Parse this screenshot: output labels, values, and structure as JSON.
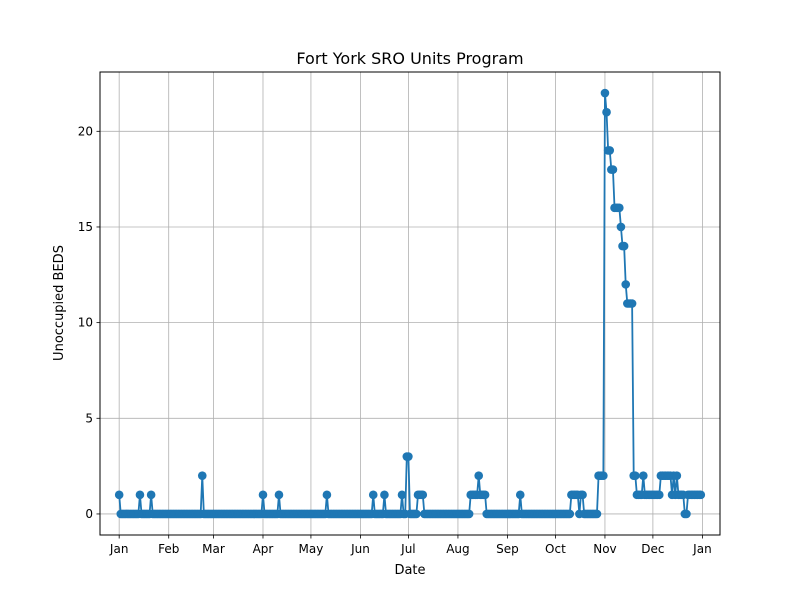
{
  "chart_data": {
    "type": "line",
    "title": "Fort York SRO Units Program",
    "xlabel": "Date",
    "ylabel": "Unoccupied BEDS",
    "grid": true,
    "series_color": "#1f77b4",
    "grid_color": "#b0b0b0",
    "x_range": [
      "2021-12-20",
      "2023-01-12"
    ],
    "ylim": [
      -1.1,
      23.1
    ],
    "y_ticks": [
      0,
      5,
      10,
      15,
      20
    ],
    "x_ticks": [
      {
        "date": "2022-01-01",
        "label": "Jan"
      },
      {
        "date": "2022-02-01",
        "label": "Feb"
      },
      {
        "date": "2022-03-01",
        "label": "Mar"
      },
      {
        "date": "2022-04-01",
        "label": "Apr"
      },
      {
        "date": "2022-05-01",
        "label": "May"
      },
      {
        "date": "2022-06-01",
        "label": "Jun"
      },
      {
        "date": "2022-07-01",
        "label": "Jul"
      },
      {
        "date": "2022-08-01",
        "label": "Aug"
      },
      {
        "date": "2022-09-01",
        "label": "Sep"
      },
      {
        "date": "2022-10-01",
        "label": "Oct"
      },
      {
        "date": "2022-11-01",
        "label": "Nov"
      },
      {
        "date": "2022-12-01",
        "label": "Dec"
      },
      {
        "date": "2023-01-01",
        "label": "Jan"
      }
    ],
    "series": [
      {
        "x": [
          "2022-01-01",
          "2022-01-02",
          "2022-01-03",
          "2022-01-04",
          "2022-01-05",
          "2022-01-06",
          "2022-01-07",
          "2022-01-08",
          "2022-01-09",
          "2022-01-10",
          "2022-01-11",
          "2022-01-12",
          "2022-01-13",
          "2022-01-14",
          "2022-01-15",
          "2022-01-16",
          "2022-01-17",
          "2022-01-18",
          "2022-01-19",
          "2022-01-20",
          "2022-01-21",
          "2022-01-22",
          "2022-01-23",
          "2022-01-24",
          "2022-01-25",
          "2022-01-26",
          "2022-01-27",
          "2022-01-28",
          "2022-01-29",
          "2022-01-30",
          "2022-01-31",
          "2022-02-01",
          "2022-02-02",
          "2022-02-03",
          "2022-02-04",
          "2022-02-05",
          "2022-02-06",
          "2022-02-07",
          "2022-02-08",
          "2022-02-09",
          "2022-02-10",
          "2022-02-11",
          "2022-02-12",
          "2022-02-13",
          "2022-02-14",
          "2022-02-15",
          "2022-02-16",
          "2022-02-17",
          "2022-02-18",
          "2022-02-19",
          "2022-02-20",
          "2022-02-21",
          "2022-02-22",
          "2022-02-23",
          "2022-02-24",
          "2022-02-25",
          "2022-02-26",
          "2022-02-27",
          "2022-02-28",
          "2022-03-01",
          "2022-03-02",
          "2022-03-03",
          "2022-03-04",
          "2022-03-05",
          "2022-03-06",
          "2022-03-07",
          "2022-03-08",
          "2022-03-09",
          "2022-03-10",
          "2022-03-11",
          "2022-03-12",
          "2022-03-13",
          "2022-03-14",
          "2022-03-15",
          "2022-03-16",
          "2022-03-17",
          "2022-03-18",
          "2022-03-19",
          "2022-03-20",
          "2022-03-21",
          "2022-03-22",
          "2022-03-23",
          "2022-03-24",
          "2022-03-25",
          "2022-03-26",
          "2022-03-27",
          "2022-03-28",
          "2022-03-29",
          "2022-03-30",
          "2022-03-31",
          "2022-04-01",
          "2022-04-02",
          "2022-04-03",
          "2022-04-04",
          "2022-04-05",
          "2022-04-06",
          "2022-04-07",
          "2022-04-08",
          "2022-04-09",
          "2022-04-10",
          "2022-04-11",
          "2022-04-12",
          "2022-04-13",
          "2022-04-14",
          "2022-04-15",
          "2022-04-16",
          "2022-04-17",
          "2022-04-18",
          "2022-04-19",
          "2022-04-20",
          "2022-04-21",
          "2022-04-22",
          "2022-04-23",
          "2022-04-24",
          "2022-04-25",
          "2022-04-26",
          "2022-04-27",
          "2022-04-28",
          "2022-04-29",
          "2022-04-30",
          "2022-05-01",
          "2022-05-02",
          "2022-05-03",
          "2022-05-04",
          "2022-05-05",
          "2022-05-06",
          "2022-05-07",
          "2022-05-08",
          "2022-05-09",
          "2022-05-10",
          "2022-05-11",
          "2022-05-12",
          "2022-05-13",
          "2022-05-14",
          "2022-05-15",
          "2022-05-16",
          "2022-05-17",
          "2022-05-18",
          "2022-05-19",
          "2022-05-20",
          "2022-05-21",
          "2022-05-22",
          "2022-05-23",
          "2022-05-24",
          "2022-05-25",
          "2022-05-26",
          "2022-05-27",
          "2022-05-28",
          "2022-05-29",
          "2022-05-30",
          "2022-05-31",
          "2022-06-01",
          "2022-06-02",
          "2022-06-03",
          "2022-06-04",
          "2022-06-05",
          "2022-06-06",
          "2022-06-07",
          "2022-06-08",
          "2022-06-09",
          "2022-06-10",
          "2022-06-11",
          "2022-06-12",
          "2022-06-13",
          "2022-06-14",
          "2022-06-15",
          "2022-06-16",
          "2022-06-17",
          "2022-06-18",
          "2022-06-19",
          "2022-06-20",
          "2022-06-21",
          "2022-06-22",
          "2022-06-23",
          "2022-06-24",
          "2022-06-25",
          "2022-06-26",
          "2022-06-27",
          "2022-06-28",
          "2022-06-29",
          "2022-06-30",
          "2022-07-01",
          "2022-07-02",
          "2022-07-03",
          "2022-07-04",
          "2022-07-05",
          "2022-07-06",
          "2022-07-07",
          "2022-07-08",
          "2022-07-09",
          "2022-07-10",
          "2022-07-11",
          "2022-07-12",
          "2022-07-13",
          "2022-07-14",
          "2022-07-15",
          "2022-07-16",
          "2022-07-17",
          "2022-07-18",
          "2022-07-19",
          "2022-07-20",
          "2022-07-21",
          "2022-07-22",
          "2022-07-23",
          "2022-07-24",
          "2022-07-25",
          "2022-07-26",
          "2022-07-27",
          "2022-07-28",
          "2022-07-29",
          "2022-07-30",
          "2022-07-31",
          "2022-08-01",
          "2022-08-02",
          "2022-08-03",
          "2022-08-04",
          "2022-08-05",
          "2022-08-06",
          "2022-08-07",
          "2022-08-08",
          "2022-08-09",
          "2022-08-10",
          "2022-08-11",
          "2022-08-12",
          "2022-08-13",
          "2022-08-14",
          "2022-08-15",
          "2022-08-16",
          "2022-08-17",
          "2022-08-18",
          "2022-08-19",
          "2022-08-20",
          "2022-08-21",
          "2022-08-22",
          "2022-08-23",
          "2022-08-24",
          "2022-08-25",
          "2022-08-26",
          "2022-08-27",
          "2022-08-28",
          "2022-08-29",
          "2022-08-30",
          "2022-08-31",
          "2022-09-01",
          "2022-09-02",
          "2022-09-03",
          "2022-09-04",
          "2022-09-05",
          "2022-09-06",
          "2022-09-07",
          "2022-09-08",
          "2022-09-09",
          "2022-09-10",
          "2022-09-11",
          "2022-09-12",
          "2022-09-13",
          "2022-09-14",
          "2022-09-15",
          "2022-09-16",
          "2022-09-17",
          "2022-09-18",
          "2022-09-19",
          "2022-09-20",
          "2022-09-21",
          "2022-09-22",
          "2022-09-23",
          "2022-09-24",
          "2022-09-25",
          "2022-09-26",
          "2022-09-27",
          "2022-09-28",
          "2022-09-29",
          "2022-09-30",
          "2022-10-01",
          "2022-10-02",
          "2022-10-03",
          "2022-10-04",
          "2022-10-05",
          "2022-10-06",
          "2022-10-07",
          "2022-10-08",
          "2022-10-09",
          "2022-10-10",
          "2022-10-11",
          "2022-10-12",
          "2022-10-13",
          "2022-10-14",
          "2022-10-15",
          "2022-10-16",
          "2022-10-17",
          "2022-10-18",
          "2022-10-19",
          "2022-10-20",
          "2022-10-21",
          "2022-10-22",
          "2022-10-23",
          "2022-10-24",
          "2022-10-25",
          "2022-10-26",
          "2022-10-27",
          "2022-10-28",
          "2022-10-29",
          "2022-10-30",
          "2022-10-31",
          "2022-11-01",
          "2022-11-02",
          "2022-11-03",
          "2022-11-04",
          "2022-11-05",
          "2022-11-06",
          "2022-11-07",
          "2022-11-08",
          "2022-11-09",
          "2022-11-10",
          "2022-11-11",
          "2022-11-12",
          "2022-11-13",
          "2022-11-14",
          "2022-11-15",
          "2022-11-16",
          "2022-11-17",
          "2022-11-18",
          "2022-11-19",
          "2022-11-20",
          "2022-11-21",
          "2022-11-22",
          "2022-11-23",
          "2022-11-24",
          "2022-11-25",
          "2022-11-26",
          "2022-11-27",
          "2022-11-28",
          "2022-11-29",
          "2022-11-30",
          "2022-12-01",
          "2022-12-02",
          "2022-12-03",
          "2022-12-04",
          "2022-12-05",
          "2022-12-06",
          "2022-12-07",
          "2022-12-08",
          "2022-12-09",
          "2022-12-10",
          "2022-12-11",
          "2022-12-12",
          "2022-12-13",
          "2022-12-14",
          "2022-12-15",
          "2022-12-16",
          "2022-12-17",
          "2022-12-18",
          "2022-12-19",
          "2022-12-20",
          "2022-12-21",
          "2022-12-22",
          "2022-12-23",
          "2022-12-24",
          "2022-12-25",
          "2022-12-26",
          "2022-12-27",
          "2022-12-28",
          "2022-12-29",
          "2022-12-30",
          "2022-12-31"
        ],
        "y": [
          1,
          0,
          0,
          0,
          0,
          0,
          0,
          0,
          0,
          0,
          0,
          0,
          0,
          0,
          0,
          0,
          0,
          0,
          0,
          0,
          0,
          0,
          0,
          0,
          0,
          0,
          0,
          0,
          0,
          0,
          0,
          0,
          0,
          0,
          0,
          0,
          0,
          0,
          0,
          0,
          0,
          0,
          0,
          0,
          0,
          0,
          0,
          0,
          0,
          0,
          0,
          0,
          0,
          0,
          0,
          0,
          0,
          0,
          0,
          0,
          0,
          0,
          0,
          0,
          0,
          0,
          0,
          0,
          0,
          0,
          0,
          0,
          0,
          0,
          0,
          0,
          0,
          0,
          0,
          0,
          0,
          0,
          0,
          0,
          0,
          0,
          0,
          0,
          0,
          0,
          0,
          0,
          0,
          0,
          0,
          0,
          0,
          0,
          0,
          0,
          0,
          0,
          0,
          0,
          0,
          0,
          0,
          0,
          0,
          0,
          0,
          0,
          0,
          0,
          0,
          0,
          0,
          0,
          0,
          0,
          0,
          0,
          0,
          0,
          0,
          0,
          0,
          0,
          0,
          0,
          0,
          0,
          0,
          0,
          0,
          0,
          0,
          0,
          0,
          0,
          0,
          0,
          0,
          0,
          0,
          0,
          0,
          0,
          0,
          0,
          0,
          0,
          0,
          0,
          0,
          0,
          0,
          0,
          0,
          0,
          0,
          0,
          0,
          0,
          0,
          0,
          0,
          0,
          0,
          0,
          0,
          0,
          0,
          0,
          0,
          0,
          0,
          0,
          0,
          0,
          0,
          0,
          0,
          0,
          0,
          0,
          0,
          0,
          0,
          0,
          0,
          0,
          0,
          0,
          0,
          0,
          0,
          0,
          0,
          0,
          0,
          0,
          0,
          0,
          0,
          0,
          0,
          0,
          0,
          0,
          0,
          0,
          0,
          0,
          0,
          0,
          0,
          0,
          0,
          0,
          0,
          0,
          0,
          0,
          0,
          0,
          0,
          0,
          0,
          0,
          0,
          0,
          0,
          0,
          0,
          0,
          0,
          0,
          0,
          0,
          0,
          0,
          0,
          0,
          0,
          0,
          0,
          0,
          0,
          0,
          0,
          0,
          0,
          0,
          0,
          0,
          0,
          0,
          0,
          0,
          0,
          0,
          0,
          0,
          0,
          0,
          0,
          0,
          0,
          0,
          0,
          0,
          0,
          0,
          0,
          0,
          0,
          0,
          0,
          0,
          0,
          0,
          0,
          0,
          0,
          0,
          0,
          0,
          0,
          0,
          0,
          0,
          0,
          0,
          0,
          0,
          0,
          0,
          0,
          0,
          0,
          0,
          0,
          0,
          0,
          0,
          0,
          0,
          0,
          0,
          0,
          0,
          0,
          0,
          0,
          0,
          0,
          0,
          0,
          0,
          0,
          0,
          0,
          0,
          0,
          0,
          0,
          0,
          0,
          0,
          0,
          0,
          0,
          0,
          0,
          0,
          0,
          0,
          0,
          0,
          0,
          0,
          0,
          0,
          0,
          0,
          0,
          0,
          0,
          0,
          0,
          0,
          0,
          0,
          0,
          0,
          0,
          0,
          0,
          0,
          0,
          0,
          0,
          0,
          0
        ],
        "overrides": {
          "2022-01-14": 1,
          "2022-01-21": 1,
          "2022-02-22": 2,
          "2022-04-01": 1,
          "2022-04-11": 1,
          "2022-05-11": 1,
          "2022-06-09": 1,
          "2022-06-16": 1,
          "2022-06-27": 1,
          "2022-06-30": 3,
          "2022-07-01": 3,
          "2022-07-07": 1,
          "2022-07-08": 1,
          "2022-07-09": 1,
          "2022-07-10": 1,
          "2022-08-09": 1,
          "2022-08-10": 1,
          "2022-08-11": 1,
          "2022-08-12": 1,
          "2022-08-13": 1,
          "2022-08-14": 2,
          "2022-08-15": 1,
          "2022-08-16": 1,
          "2022-08-17": 1,
          "2022-08-18": 1,
          "2022-09-09": 1,
          "2022-10-11": 1,
          "2022-10-12": 1,
          "2022-10-13": 1,
          "2022-10-14": 1,
          "2022-10-15": 1,
          "2022-10-17": 1,
          "2022-10-18": 1,
          "2022-10-28": 2,
          "2022-10-29": 2,
          "2022-10-30": 2,
          "2022-10-31": 2,
          "2022-11-01": 22,
          "2022-11-02": 21,
          "2022-11-03": 19,
          "2022-11-04": 19,
          "2022-11-05": 18,
          "2022-11-06": 18,
          "2022-11-07": 16,
          "2022-11-08": 16,
          "2022-11-09": 16,
          "2022-11-10": 16,
          "2022-11-11": 15,
          "2022-11-12": 14,
          "2022-11-13": 14,
          "2022-11-14": 12,
          "2022-11-15": 11,
          "2022-11-16": 11,
          "2022-11-17": 11,
          "2022-11-18": 11,
          "2022-11-19": 2,
          "2022-11-20": 2,
          "2022-11-21": 1,
          "2022-11-22": 1,
          "2022-11-23": 1,
          "2022-11-24": 1,
          "2022-11-25": 2,
          "2022-11-26": 1,
          "2022-11-27": 1,
          "2022-11-28": 1,
          "2022-11-29": 1,
          "2022-11-30": 1,
          "2022-12-01": 1,
          "2022-12-02": 1,
          "2022-12-03": 1,
          "2022-12-04": 1,
          "2022-12-05": 1,
          "2022-12-06": 2,
          "2022-12-07": 2,
          "2022-12-08": 2,
          "2022-12-09": 2,
          "2022-12-10": 2,
          "2022-12-11": 2,
          "2022-12-12": 2,
          "2022-12-13": 1,
          "2022-12-14": 2,
          "2022-12-15": 1,
          "2022-12-16": 2,
          "2022-12-17": 1,
          "2022-12-18": 1,
          "2022-12-19": 1,
          "2022-12-20": 1,
          "2022-12-21": 0,
          "2022-12-22": 0,
          "2022-12-23": 1,
          "2022-12-24": 1,
          "2022-12-25": 1,
          "2022-12-26": 1,
          "2022-12-27": 1,
          "2022-12-28": 1,
          "2022-12-29": 1,
          "2022-12-30": 1,
          "2022-12-31": 1
        }
      }
    ]
  }
}
